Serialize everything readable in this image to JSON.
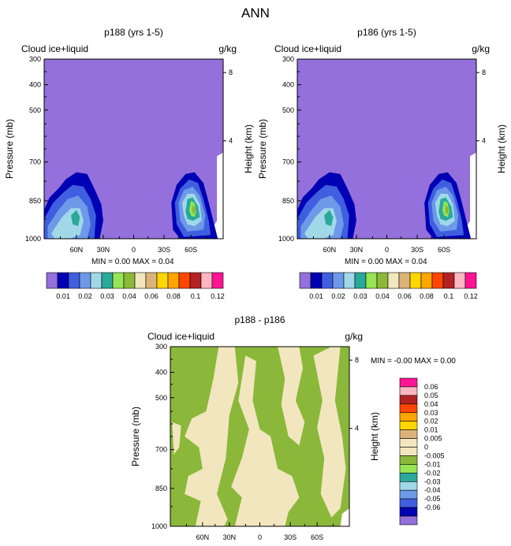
{
  "figure_title": "ANN",
  "chart_data": [
    {
      "type": "contour",
      "title": "p188 (yrs 1-5)",
      "left_label": "Cloud ice+liquid",
      "units": "g/kg",
      "ylabel": "Pressure (mb)",
      "y2label": "Height (km)",
      "y_ticks": [
        "300",
        "400",
        "500",
        "700",
        "850",
        "1000"
      ],
      "y2_ticks": [
        "8",
        "4"
      ],
      "x_ticks": [
        "60N",
        "30N",
        "0",
        "30S",
        "60S"
      ],
      "stats": {
        "min_label": "MIN =",
        "min": "0.00",
        "max_label": "MAX =",
        "max": "0.04"
      },
      "levels": [
        "0.01",
        "0.02",
        "0.03",
        "0.04",
        "0.06",
        "0.08",
        "0.1",
        "0.12"
      ],
      "fill_colors": [
        "#9370db",
        "#0000b4",
        "#3f5fe0",
        "#6e99e8",
        "#a0d8e8",
        "#2aa89a",
        "#97e455",
        "#8bb83a",
        "#f2e6bf",
        "#dcb47a",
        "#ffd700",
        "#ffa500",
        "#ff4500",
        "#b22222",
        "#ffb6c1",
        "#ff1493"
      ]
    },
    {
      "type": "contour",
      "title": "p186 (yrs 1-5)",
      "left_label": "Cloud ice+liquid",
      "units": "g/kg",
      "ylabel": "Pressure (mb)",
      "y2label": "Height (km)",
      "y_ticks": [
        "300",
        "400",
        "500",
        "700",
        "850",
        "1000"
      ],
      "y2_ticks": [
        "8",
        "4"
      ],
      "x_ticks": [
        "60N",
        "30N",
        "0",
        "30S",
        "60S"
      ],
      "stats": {
        "min_label": "MIN =",
        "min": "0.00",
        "max_label": "MAX =",
        "max": "0.04"
      },
      "levels": [
        "0.01",
        "0.02",
        "0.03",
        "0.04",
        "0.06",
        "0.08",
        "0.1",
        "0.12"
      ],
      "fill_colors": [
        "#9370db",
        "#0000b4",
        "#3f5fe0",
        "#6e99e8",
        "#a0d8e8",
        "#2aa89a",
        "#97e455",
        "#8bb83a",
        "#f2e6bf",
        "#dcb47a",
        "#ffd700",
        "#ffa500",
        "#ff4500",
        "#b22222",
        "#ffb6c1",
        "#ff1493"
      ]
    },
    {
      "type": "contour",
      "title": "p188 - p186",
      "left_label": "Cloud ice+liquid",
      "units": "g/kg",
      "ylabel": "Pressure (mb)",
      "y2label": "Height (km)",
      "y_ticks": [
        "300",
        "400",
        "500",
        "700",
        "850",
        "1000"
      ],
      "y2_ticks": [
        "8",
        "4"
      ],
      "x_ticks": [
        "60N",
        "30N",
        "0",
        "30S",
        "60S"
      ],
      "stats": {
        "min_label": "MIN =",
        "min": "-0.00",
        "max_label": "MAX =",
        "max": "0.00"
      },
      "levels": [
        "0.06",
        "0.05",
        "0.04",
        "0.03",
        "0.02",
        "0.01",
        "0.005",
        "0",
        "-0.005",
        "-0.01",
        "-0.02",
        "-0.03",
        "-0.04",
        "-0.05",
        "-0.06"
      ],
      "fill_colors": [
        "#ff1493",
        "#ffb6c1",
        "#b22222",
        "#ff4500",
        "#ffa500",
        "#ffd700",
        "#dcb47a",
        "#f2e6bf",
        "#f2e6bf",
        "#8bb83a",
        "#97e455",
        "#2aa89a",
        "#a0d8e8",
        "#6e99e8",
        "#3f5fe0",
        "#0000b4",
        "#9370db"
      ]
    }
  ]
}
